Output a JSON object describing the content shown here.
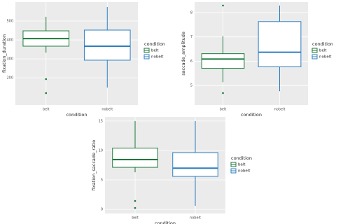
{
  "chart_data": [
    {
      "type": "box",
      "xlabel": "condition",
      "ylabel": "fixation_duration",
      "categories": [
        "belt",
        "nobelt"
      ],
      "legend_title": "condition",
      "ylim": [
        56,
        600
      ],
      "yticks": [
        200,
        300,
        400,
        500
      ],
      "grid": true,
      "series": [
        {
          "name": "belt",
          "color": "#1b7a3a",
          "whisker_low": 333,
          "q1": 367,
          "median": 407,
          "q3": 448,
          "whisker_high": 522,
          "outliers": [
            193,
            119
          ]
        },
        {
          "name": "nobelt",
          "color": "#2d7fc1",
          "whisker_low": 148,
          "q1": 293,
          "median": 367,
          "q3": 452,
          "whisker_high": 574,
          "outliers": []
        }
      ]
    },
    {
      "type": "box",
      "xlabel": "condition",
      "ylabel": "saccade_amplitude",
      "categories": [
        "belt",
        "nobelt"
      ],
      "legend_title": "condition",
      "ylim": [
        4.2,
        8.43
      ],
      "yticks": [
        5,
        6,
        7,
        8
      ],
      "grid": true,
      "series": [
        {
          "name": "belt",
          "color": "#1b7a3a",
          "whisker_low": 5.14,
          "q1": 5.71,
          "median": 6.09,
          "q3": 6.31,
          "whisker_high": 7.03,
          "outliers": [
            8.29,
            4.69
          ]
        },
        {
          "name": "nobelt",
          "color": "#2d7fc1",
          "whisker_low": 4.77,
          "q1": 5.77,
          "median": 6.37,
          "q3": 7.63,
          "whisker_high": 8.29,
          "outliers": []
        }
      ]
    },
    {
      "type": "box",
      "xlabel": "condition",
      "ylabel": "fixation_saccade_ratio",
      "categories": [
        "belt",
        "nobelt"
      ],
      "legend_title": "condition",
      "ylim": [
        -0.7,
        15.7
      ],
      "yticks": [
        0,
        5,
        10,
        15
      ],
      "grid": true,
      "series": [
        {
          "name": "belt",
          "color": "#1b7a3a",
          "whisker_low": 6.3,
          "q1": 7.14,
          "median": 8.45,
          "q3": 10.4,
          "whisker_high": 15,
          "outliers": [
            1.43,
            0.24
          ]
        },
        {
          "name": "nobelt",
          "color": "#2d7fc1",
          "whisker_low": 0.6,
          "q1": 5.6,
          "median": 7.0,
          "q3": 9.64,
          "whisker_high": 15,
          "outliers": []
        }
      ]
    }
  ]
}
